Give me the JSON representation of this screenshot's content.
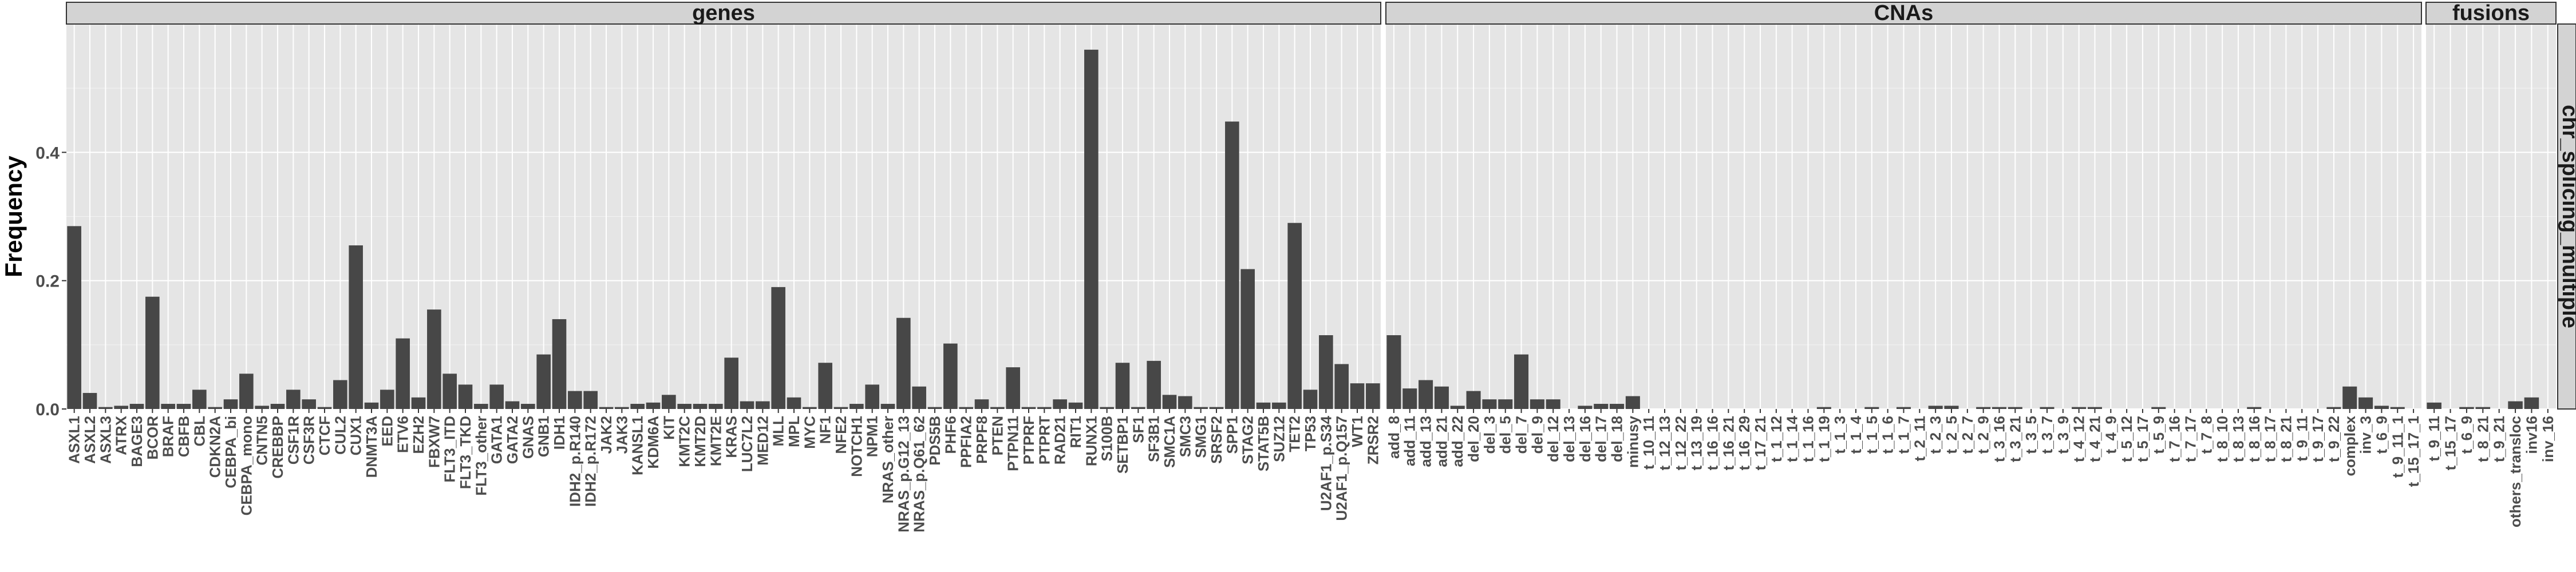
{
  "chart_data": {
    "type": "bar",
    "ylabel": "Frequency",
    "xlabel": "",
    "ylim": [
      0,
      0.6
    ],
    "yticks": [
      0.0,
      0.2,
      0.4
    ],
    "ytick_labels": [
      "0.0",
      "0.2",
      "0.4"
    ],
    "grid": true,
    "row_strip": "chr_splicing_multiple",
    "bar_color": "#474747",
    "panel_background": "#e5e5e5",
    "strip_background": "#d3d3d3",
    "panels": [
      {
        "title": "genes",
        "categories": [
          "ASXL1",
          "ASXL2",
          "ASXL3",
          "ATRX",
          "BAGE3",
          "BCOR",
          "BRAF",
          "CBFB",
          "CBL",
          "CDKN2A",
          "CEBPA_bi",
          "CEBPA_mono",
          "CNTN5",
          "CREBBP",
          "CSF1R",
          "CSF3R",
          "CTCF",
          "CUL2",
          "CUX1",
          "DNMT3A",
          "EED",
          "ETV6",
          "EZH2",
          "FBXW7",
          "FLT3_ITD",
          "FLT3_TKD",
          "FLT3_other",
          "GATA1",
          "GATA2",
          "GNAS",
          "GNB1",
          "IDH1",
          "IDH2_p.R140",
          "IDH2_p.R172",
          "JAK2",
          "JAK3",
          "KANSL1",
          "KDM6A",
          "KIT",
          "KMT2C",
          "KMT2D",
          "KMT2E",
          "KRAS",
          "LUC7L2",
          "MED12",
          "MLL",
          "MPL",
          "MYC",
          "NF1",
          "NFE2",
          "NOTCH1",
          "NPM1",
          "NRAS_other",
          "NRAS_p.G12_13",
          "NRAS_p.Q61_62",
          "PDS5B",
          "PHF6",
          "PPFIA2",
          "PRPF8",
          "PTEN",
          "PTPN11",
          "PTPRF",
          "PTPRT",
          "RAD21",
          "RIT1",
          "RUNX1",
          "S100B",
          "SETBP1",
          "SF1",
          "SF3B1",
          "SMC1A",
          "SMC3",
          "SMG1",
          "SRSF2",
          "SPP1",
          "STAG2",
          "STAT5B",
          "SUZ12",
          "TET2",
          "TP53",
          "U2AF1_p.S34",
          "U2AF1_p.Q157",
          "WT1",
          "ZRSR2"
        ],
        "values": [
          0.285,
          0.025,
          0.003,
          0.005,
          0.008,
          0.175,
          0.008,
          0.008,
          0.03,
          0.003,
          0.015,
          0.055,
          0.005,
          0.008,
          0.03,
          0.015,
          0.003,
          0.045,
          0.255,
          0.01,
          0.03,
          0.11,
          0.018,
          0.155,
          0.055,
          0.038,
          0.008,
          0.038,
          0.012,
          0.008,
          0.085,
          0.14,
          0.028,
          0.028,
          0.003,
          0.003,
          0.008,
          0.01,
          0.022,
          0.008,
          0.008,
          0.008,
          0.08,
          0.012,
          0.012,
          0.19,
          0.018,
          0.003,
          0.072,
          0.003,
          0.008,
          0.038,
          0.008,
          0.142,
          0.035,
          0.003,
          0.102,
          0.003,
          0.015,
          0.003,
          0.065,
          0.003,
          0.003,
          0.015,
          0.01,
          0.56,
          0.003,
          0.072,
          0.003,
          0.075,
          0.022,
          0.02,
          0.003,
          0.003,
          0.448,
          0.218,
          0.01,
          0.01,
          0.29,
          0.03,
          0.115,
          0.07,
          0.04,
          0.04
        ]
      },
      {
        "title": "CNAs",
        "categories": [
          "add_8",
          "add_11",
          "add_13",
          "add_21",
          "add_22",
          "del_20",
          "del_3",
          "del_5",
          "del_7",
          "del_9",
          "del_12",
          "del_13",
          "del_16",
          "del_17",
          "del_18",
          "minusy",
          "t_10_11",
          "t_12_13",
          "t_12_22",
          "t_13_19",
          "t_16_16",
          "t_16_21",
          "t_16_29",
          "t_17_21",
          "t_1_12",
          "t_1_14",
          "t_1_16",
          "t_1_19",
          "t_1_3",
          "t_1_4",
          "t_1_5",
          "t_1_6",
          "t_1_7",
          "t_2_11",
          "t_2_3",
          "t_2_5",
          "t_2_7",
          "t_2_9",
          "t_3_16",
          "t_3_21",
          "t_3_5",
          "t_3_7",
          "t_3_9",
          "t_4_12",
          "t_4_21",
          "t_4_9",
          "t_5_12",
          "t_5_17",
          "t_5_9",
          "t_7_16",
          "t_7_17",
          "t_7_8",
          "t_8_10",
          "t_8_13",
          "t_8_16",
          "t_8_17",
          "t_8_21",
          "t_9_11",
          "t_9_17",
          "t_9_22",
          "complex",
          "inv_3",
          "t_6_9",
          "t_9_11_1",
          "t_15_17_1"
        ],
        "values": [
          0.115,
          0.032,
          0.045,
          0.035,
          0.005,
          0.028,
          0.015,
          0.015,
          0.085,
          0.015,
          0.015,
          0,
          0.005,
          0.008,
          0.008,
          0.02,
          0,
          0,
          0,
          0,
          0,
          0,
          0,
          0,
          0,
          0,
          0,
          0.003,
          0,
          0,
          0.003,
          0,
          0.003,
          0,
          0.005,
          0.005,
          0,
          0.003,
          0.003,
          0.003,
          0,
          0.003,
          0,
          0.003,
          0.003,
          0,
          0,
          0,
          0.003,
          0,
          0,
          0,
          0,
          0,
          0.003,
          0,
          0,
          0,
          0,
          0.003,
          0.035,
          0.018,
          0.005,
          0.003,
          0
        ]
      },
      {
        "title": "fusions",
        "categories": [
          "t_9_11",
          "t_15_17",
          "t_6_9",
          "t_8_21",
          "t_9_21",
          "others_transloc",
          "inv16",
          "inv_16"
        ],
        "values": [
          0.01,
          0,
          0.003,
          0.003,
          0,
          0.012,
          0.018,
          0
        ]
      }
    ]
  }
}
